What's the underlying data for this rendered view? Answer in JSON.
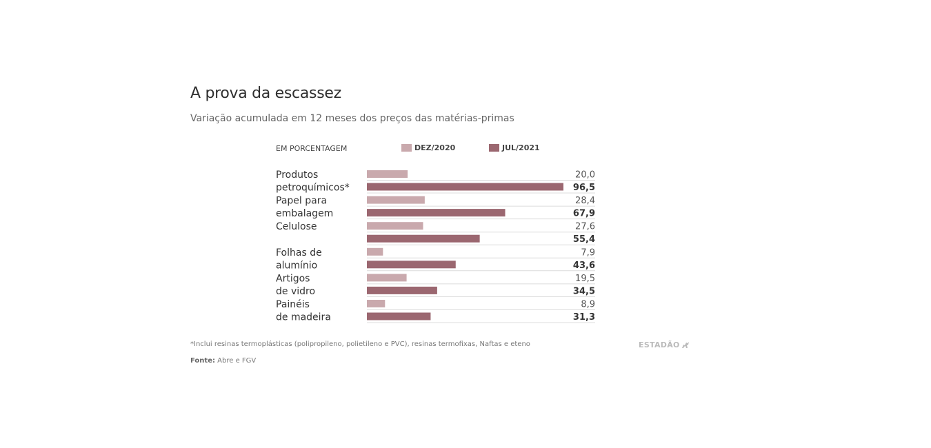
{
  "header": {
    "title": "A prova da escassez",
    "subtitle": "Variação acumulada em 12 meses dos preços das matérias-primas"
  },
  "legend": {
    "unit_label": "EM PORCENTAGEM",
    "items": [
      {
        "label": "DEZ/2020",
        "color": "#c9a9ad"
      },
      {
        "label": "JUL/2021",
        "color": "#9b6770"
      }
    ]
  },
  "chart_data": {
    "type": "bar",
    "orientation": "horizontal",
    "categories": [
      {
        "line1": "Produtos",
        "line2": "petroquímicos*"
      },
      {
        "line1": "Papel para",
        "line2": "embalagem"
      },
      {
        "line1": "Celulose",
        "line2": ""
      },
      {
        "line1": "Folhas de",
        "line2": "alumínio"
      },
      {
        "line1": "Artigos",
        "line2": "de vidro"
      },
      {
        "line1": "Painéis",
        "line2": "de madeira"
      }
    ],
    "series": [
      {
        "name": "DEZ/2020",
        "color": "#c9a9ad",
        "values": [
          20.0,
          28.4,
          27.6,
          7.9,
          19.5,
          8.9
        ],
        "labels": [
          "20,0",
          "28,4",
          "27,6",
          "7,9",
          "19,5",
          "8,9"
        ]
      },
      {
        "name": "JUL/2021",
        "color": "#9b6770",
        "values": [
          96.5,
          67.9,
          55.4,
          43.6,
          34.5,
          31.3
        ],
        "labels": [
          "96,5",
          "67,9",
          "55,4",
          "43,6",
          "34,5",
          "31,3"
        ]
      }
    ],
    "xlim": [
      0,
      96.5
    ],
    "grid": false,
    "legend_position": "top"
  },
  "footer": {
    "footnote": "*Inclui resinas termoplásticas (polipropileno, polietileno e PVC), resinas termofixas, Naftas e eteno",
    "source_label": "Fonte:",
    "source_text": "Abre e FGV",
    "brand": "ESTADÃO"
  }
}
